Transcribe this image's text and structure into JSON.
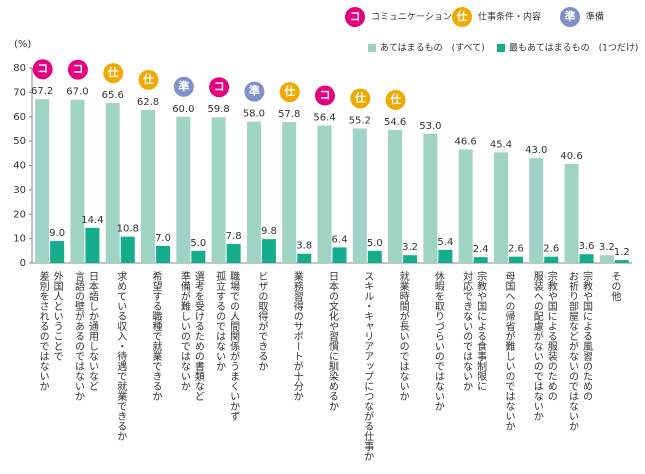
{
  "chart_data": {
    "type": "bar",
    "unit_label": "(%)",
    "categories": [
      [
        "外国人ということで",
        "差別をされるのではないか"
      ],
      [
        "日本語しか通用しないなど",
        "言語の壁があるのではないか"
      ],
      [
        "求めている収入・待遇で就業できるか"
      ],
      [
        "希望する職種で就業できるか"
      ],
      [
        "選考を受けるための書類など",
        "準備が難しいのではないか"
      ],
      [
        "職場での人間関係がうまくいかず",
        "孤立するのではないか"
      ],
      [
        "ビザの取得ができるか"
      ],
      [
        "業務習得のサポートが十分か"
      ],
      [
        "日本の文化や習慣に馴染めるか"
      ],
      [
        "スキル・キャリアアップにつながる仕事か"
      ],
      [
        "就業時間が長いのではないか"
      ],
      [
        "休暇を取りづらいのではないか"
      ],
      [
        "宗教や国による食事制限に",
        "対応できないのではないか"
      ],
      [
        "母国への帰省が難しいのではないか"
      ],
      [
        "宗教や国による服装のための",
        "服装への配慮がないのではないか"
      ],
      [
        "宗教や国による風習のための",
        "お祈り部屋などがないのではないか"
      ],
      [
        "その他"
      ]
    ],
    "series": [
      {
        "name": "あてはまるもの　(すべて)",
        "color": "#9fd3c4",
        "values": [
          67.2,
          67.0,
          65.6,
          62.8,
          60.0,
          59.8,
          58.0,
          57.8,
          56.4,
          55.2,
          54.6,
          53.0,
          46.6,
          45.4,
          43.0,
          40.6,
          3.2
        ],
        "value_labels": [
          "67.2",
          "67.0",
          "65.6",
          "62.8",
          "60.0",
          "59.8",
          "58.0",
          "57.8",
          "56.4",
          "55.2",
          "54.6",
          "53.0",
          "46.6",
          "45.4",
          "43.0",
          "40.6",
          "3.2"
        ]
      },
      {
        "name": "最もあてはまるもの　(1つだけ)",
        "color": "#16ad8c",
        "values": [
          9.0,
          14.4,
          10.8,
          7.0,
          5.0,
          7.8,
          9.8,
          3.8,
          6.4,
          5.0,
          3.2,
          5.4,
          2.4,
          2.6,
          2.6,
          3.6,
          1.2
        ],
        "value_labels": [
          "9.0",
          "14.4",
          "10.8",
          "7.0",
          "5.0",
          "7.8",
          "9.8",
          "3.8",
          "6.4",
          "5.0",
          "3.2",
          "5.4",
          "2.4",
          "2.6",
          "2.6",
          "3.6",
          "1.2"
        ]
      }
    ],
    "badge_legend": [
      {
        "mark": "コ",
        "label": "コミュニケーション",
        "color": "#e4007f"
      },
      {
        "mark": "仕",
        "label": "仕事条件・内容",
        "color": "#f0a900"
      },
      {
        "mark": "準",
        "label": "準備",
        "color": "#7f8fc9"
      }
    ],
    "badges": [
      0,
      0,
      1,
      1,
      2,
      0,
      2,
      1,
      0,
      1,
      1,
      null,
      null,
      null,
      null,
      null,
      null
    ],
    "ylim": [
      0,
      80
    ],
    "yticks": [
      0,
      10,
      20,
      30,
      40,
      50,
      60,
      70,
      80
    ],
    "grid": false
  }
}
